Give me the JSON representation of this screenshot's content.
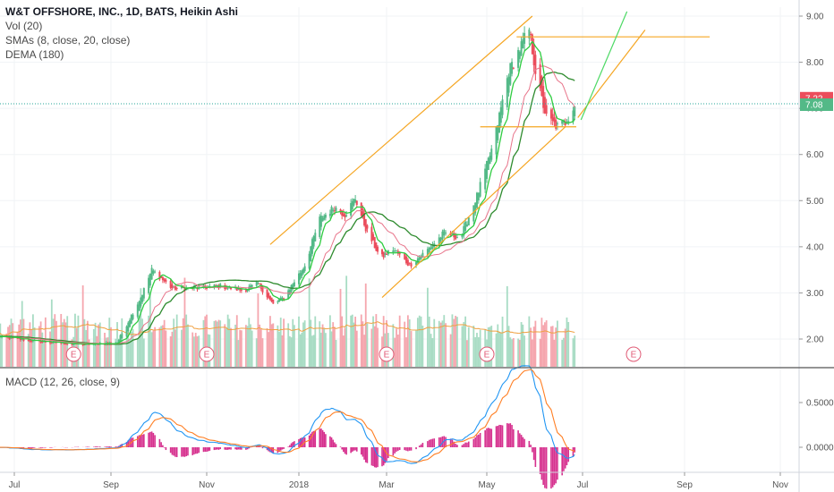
{
  "legend": {
    "title": "W&T OFFSHORE, INC., 1D, BATS, Heikin Ashi",
    "vol": "Vol (20)",
    "smas": "SMAs (8, close, 20, close)",
    "dema": "DEMA (180)",
    "macd": "MACD (12, 26, close, 9)"
  },
  "colors": {
    "up": "#53b987",
    "down": "#eb4d5c",
    "vol_up": "#a8dcc4",
    "vol_down": "#f5a6ae",
    "sma8": "#2ecc40",
    "sma20": "#e8748a",
    "dema": "#2e8b2e",
    "vol_ma": "#f0a040",
    "trendline": "#f5a623",
    "green_line": "#4cd964",
    "macd_line": "#2196f3",
    "signal_line": "#ff7f24",
    "hist": "#d6308e",
    "last_price_line": "#26a69a"
  },
  "chart_data": [
    {
      "type": "candlestick",
      "name": "price",
      "x_ticks": [
        "Jul",
        "Sep",
        "Nov",
        "2018",
        "Mar",
        "May",
        "Jul",
        "Sep",
        "Nov"
      ],
      "y_ticks": [
        "9.00",
        "8.00",
        "7.00",
        "6.00",
        "5.00",
        "4.00",
        "3.00",
        "2.00"
      ],
      "ylim": [
        1.6,
        9.2
      ],
      "price_tags": [
        {
          "label": "7.22",
          "value": 7.22,
          "color": "#eb4d5c"
        },
        {
          "label": "7.08",
          "value": 7.08,
          "color": "#53b987"
        }
      ],
      "earnings_markers": [
        "E",
        "E",
        "E",
        "E",
        "E"
      ],
      "anchors": [
        [
          "2017-06-20",
          2.05
        ],
        [
          "2017-07-15",
          1.95
        ],
        [
          "2017-08-15",
          1.88
        ],
        [
          "2017-09-05",
          1.92
        ],
        [
          "2017-09-20",
          2.9
        ],
        [
          "2017-09-27",
          3.5
        ],
        [
          "2017-10-10",
          3.1
        ],
        [
          "2017-10-25",
          3.1
        ],
        [
          "2017-11-10",
          3.15
        ],
        [
          "2017-11-25",
          3.05
        ],
        [
          "2017-12-05",
          3.2
        ],
        [
          "2017-12-15",
          2.75
        ],
        [
          "2017-12-22",
          2.9
        ],
        [
          "2018-01-05",
          3.6
        ],
        [
          "2018-01-15",
          4.6
        ],
        [
          "2018-01-25",
          4.85
        ],
        [
          "2018-02-01",
          4.7
        ],
        [
          "2018-02-08",
          5.05
        ],
        [
          "2018-02-15",
          4.4
        ],
        [
          "2018-02-25",
          3.75
        ],
        [
          "2018-03-05",
          3.95
        ],
        [
          "2018-03-15",
          3.6
        ],
        [
          "2018-03-25",
          3.9
        ],
        [
          "2018-04-05",
          4.3
        ],
        [
          "2018-04-15",
          4.2
        ],
        [
          "2018-04-25",
          5.1
        ],
        [
          "2018-05-05",
          6.2
        ],
        [
          "2018-05-15",
          7.8
        ],
        [
          "2018-05-25",
          8.5
        ],
        [
          "2018-05-28",
          8.7
        ],
        [
          "2018-06-02",
          7.6
        ],
        [
          "2018-06-08",
          6.8
        ],
        [
          "2018-06-15",
          6.6
        ],
        [
          "2018-06-20",
          6.7
        ],
        [
          "2018-06-26",
          7.08
        ]
      ],
      "trendlines": [
        {
          "color": "orange",
          "from": [
            "2017-12-13",
            4.05
          ],
          "to": [
            "2018-05-30",
            9.0
          ]
        },
        {
          "color": "orange",
          "from": [
            "2018-02-26",
            2.9
          ],
          "to": [
            "2018-06-20",
            6.6
          ]
        },
        {
          "color": "orange",
          "from": [
            "2018-05-20",
            8.55
          ],
          "to": [
            "2018-09-17",
            8.55
          ]
        },
        {
          "color": "orange",
          "from": [
            "2018-04-27",
            6.6
          ],
          "to": [
            "2018-06-27",
            6.6
          ]
        },
        {
          "color": "orange",
          "from": [
            "2018-06-28",
            6.8
          ],
          "to": [
            "2018-08-08",
            8.7
          ]
        },
        {
          "color": "green",
          "from": [
            "2018-06-30",
            6.75
          ],
          "to": [
            "2018-07-28",
            9.1
          ]
        }
      ]
    },
    {
      "type": "bar",
      "name": "volume",
      "ma_period": 20
    },
    {
      "type": "line",
      "name": "MACD",
      "y_ticks": [
        "0.5000",
        "0.0000"
      ],
      "ylim": [
        -0.45,
        0.9
      ]
    }
  ]
}
